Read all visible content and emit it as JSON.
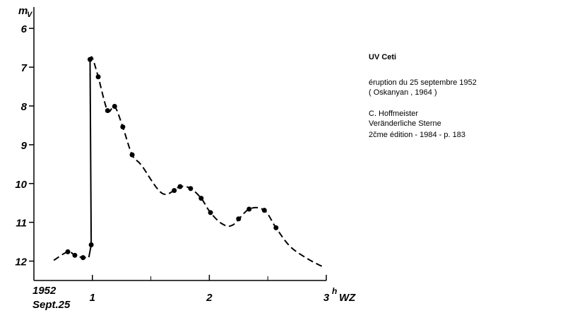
{
  "chart_data": {
    "type": "light-curve",
    "y_label": "m",
    "y_label_sub": "V",
    "date_label": [
      "1952",
      "Sept.25"
    ],
    "x_label_sup": "h",
    "x_label": "WZ",
    "xlim": [
      0.5,
      3
    ],
    "xticks": [
      1,
      2,
      3
    ],
    "xminor_ticks": [
      1.5,
      2.5
    ],
    "ylim": [
      12.5,
      5.45
    ],
    "yticks": [
      6,
      7,
      8,
      9,
      10,
      11,
      12
    ],
    "color": "#000000",
    "points": {
      "x": [
        0.79,
        0.85,
        0.92,
        0.99,
        0.98,
        1.05,
        1.13,
        1.19,
        1.26,
        1.34,
        1.7,
        1.75,
        1.84,
        1.93,
        2.01,
        2.25,
        2.34,
        2.47,
        2.57
      ],
      "values": [
        11.76,
        11.85,
        11.91,
        11.58,
        6.8,
        7.25,
        8.12,
        8.01,
        8.54,
        9.26,
        10.18,
        10.08,
        10.13,
        10.38,
        10.75,
        10.91,
        10.66,
        10.69,
        11.14
      ]
    },
    "lines": [
      {
        "dashed": true,
        "x": [
          0.67,
          0.79,
          0.85,
          0.92,
          0.97
        ],
        "values": [
          11.98,
          11.76,
          11.85,
          11.91,
          11.9
        ]
      },
      {
        "dashed": false,
        "x": [
          0.97,
          0.99,
          0.98
        ],
        "values": [
          11.9,
          11.58,
          6.8
        ]
      },
      {
        "dashed": true,
        "x": [
          0.98,
          1.0,
          1.05,
          1.13,
          1.19,
          1.26,
          1.34,
          1.42,
          1.6,
          1.75,
          1.84,
          1.93,
          2.01,
          2.11,
          2.2,
          2.34,
          2.47,
          2.57,
          2.69,
          2.84,
          2.98
        ],
        "values": [
          6.8,
          6.76,
          7.25,
          8.12,
          8.01,
          8.54,
          9.26,
          9.53,
          10.26,
          10.08,
          10.13,
          10.38,
          10.75,
          11.04,
          11.07,
          10.66,
          10.69,
          11.14,
          11.62,
          11.94,
          12.16
        ]
      }
    ]
  },
  "notes": {
    "title": "UV Ceti",
    "lines": [
      "éruption du 25 septembre 1952",
      "( Oskanyan , 1964 )",
      "C. Hoffmeister",
      "Veränderliche Sterne",
      "2čme édition - 1984 - p. 183"
    ]
  }
}
